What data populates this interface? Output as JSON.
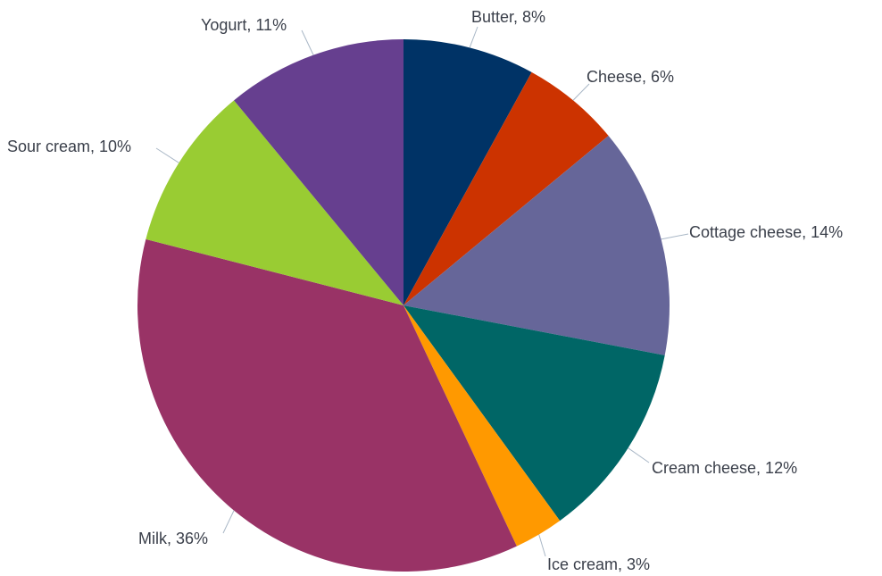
{
  "chart_data": {
    "type": "pie",
    "title": "",
    "start_angle_deg": 0,
    "direction": "clockwise",
    "slices": [
      {
        "name": "Butter",
        "value": 8,
        "label": "Butter, 8%",
        "color": "#003366"
      },
      {
        "name": "Cheese",
        "value": 6,
        "label": "Cheese, 6%",
        "color": "#cc3300"
      },
      {
        "name": "Cottage cheese",
        "value": 14,
        "label": "Cottage cheese, 14%",
        "color": "#666699"
      },
      {
        "name": "Cream cheese",
        "value": 12,
        "label": "Cream cheese, 12%",
        "color": "#006666"
      },
      {
        "name": "Ice cream",
        "value": 3,
        "label": "Ice cream, 3%",
        "color": "#ff9900"
      },
      {
        "name": "Milk",
        "value": 36,
        "label": "Milk, 36%",
        "color": "#993366"
      },
      {
        "name": "Sour cream",
        "value": 10,
        "label": "Sour cream, 10%",
        "color": "#99cc33"
      },
      {
        "name": "Yogurt",
        "value": 11,
        "label": "Yogurt, 11%",
        "color": "#663f8f"
      }
    ]
  }
}
